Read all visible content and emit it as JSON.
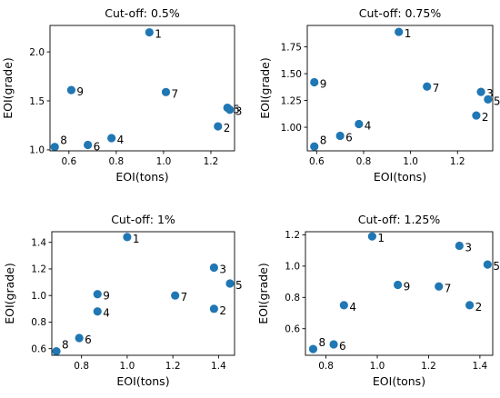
{
  "chart_data": [
    {
      "type": "scatter",
      "title": "Cut-off: 0.5%",
      "xlabel": "EOI(tons)",
      "ylabel": "EOI(grade)",
      "xlim": [
        0.52,
        1.3
      ],
      "ylim": [
        0.99,
        2.27
      ],
      "xticks": [
        0.6,
        0.8,
        1.0,
        1.2
      ],
      "xtick_labels": [
        "0.6",
        "0.8",
        "1.0",
        "1.2"
      ],
      "yticks": [
        1.0,
        1.5,
        2.0
      ],
      "ytick_labels": [
        "1.0",
        "1.5",
        "2.0"
      ],
      "color": "#1f77b4",
      "points": [
        {
          "label": "1",
          "x": 0.94,
          "y": 2.2
        },
        {
          "label": "2",
          "x": 1.23,
          "y": 1.24
        },
        {
          "label": "3",
          "x": 1.28,
          "y": 1.41
        },
        {
          "label": "4",
          "x": 0.78,
          "y": 1.12
        },
        {
          "label": "5",
          "x": 1.27,
          "y": 1.43
        },
        {
          "label": "6",
          "x": 0.68,
          "y": 1.05
        },
        {
          "label": "7",
          "x": 1.01,
          "y": 1.59
        },
        {
          "label": "8",
          "x": 0.54,
          "y": 1.03
        },
        {
          "label": "9",
          "x": 0.61,
          "y": 1.61
        }
      ]
    },
    {
      "type": "scatter",
      "title": "Cut-off: 0.75%",
      "xlabel": "EOI(tons)",
      "ylabel": "EOI(grade)",
      "xlim": [
        0.56,
        1.35
      ],
      "ylim": [
        0.78,
        1.95
      ],
      "xticks": [
        0.6,
        0.8,
        1.0,
        1.2
      ],
      "xtick_labels": [
        "0.6",
        "0.8",
        "1.0",
        "1.2"
      ],
      "yticks": [
        1.0,
        1.25,
        1.5,
        1.75
      ],
      "ytick_labels": [
        "1.00",
        "1.25",
        "1.50",
        "1.75"
      ],
      "color": "#1f77b4",
      "points": [
        {
          "label": "1",
          "x": 0.95,
          "y": 1.89
        },
        {
          "label": "2",
          "x": 1.28,
          "y": 1.11
        },
        {
          "label": "3",
          "x": 1.3,
          "y": 1.33
        },
        {
          "label": "4",
          "x": 0.78,
          "y": 1.03
        },
        {
          "label": "5",
          "x": 1.33,
          "y": 1.26
        },
        {
          "label": "6",
          "x": 0.7,
          "y": 0.92
        },
        {
          "label": "7",
          "x": 1.07,
          "y": 1.38
        },
        {
          "label": "8",
          "x": 0.59,
          "y": 0.82
        },
        {
          "label": "9",
          "x": 0.59,
          "y": 1.42
        }
      ]
    },
    {
      "type": "scatter",
      "title": "Cut-off: 1%",
      "xlabel": "EOI(tons)",
      "ylabel": "EOI(grade)",
      "xlim": [
        0.67,
        1.47
      ],
      "ylim": [
        0.55,
        1.48
      ],
      "xticks": [
        0.8,
        1.0,
        1.2,
        1.4
      ],
      "xtick_labels": [
        "0.8",
        "1.0",
        "1.2",
        "1.4"
      ],
      "yticks": [
        0.6,
        0.8,
        1.0,
        1.2,
        1.4
      ],
      "ytick_labels": [
        "0.6",
        "0.8",
        "1.0",
        "1.2",
        "1.4"
      ],
      "color": "#1f77b4",
      "points": [
        {
          "label": "1",
          "x": 1.0,
          "y": 1.44
        },
        {
          "label": "2",
          "x": 1.38,
          "y": 0.9
        },
        {
          "label": "3",
          "x": 1.38,
          "y": 1.21
        },
        {
          "label": "4",
          "x": 0.87,
          "y": 0.88
        },
        {
          "label": "5",
          "x": 1.45,
          "y": 1.09
        },
        {
          "label": "6",
          "x": 0.79,
          "y": 0.68
        },
        {
          "label": "7",
          "x": 1.21,
          "y": 1.0
        },
        {
          "label": "8",
          "x": 0.69,
          "y": 0.58
        },
        {
          "label": "9",
          "x": 0.87,
          "y": 1.01
        }
      ]
    },
    {
      "type": "scatter",
      "title": "Cut-off: 1.25%",
      "xlabel": "EOI(tons)",
      "ylabel": "EOI(grade)",
      "xlim": [
        0.72,
        1.45
      ],
      "ylim": [
        0.43,
        1.22
      ],
      "xticks": [
        0.8,
        1.0,
        1.2,
        1.4
      ],
      "xtick_labels": [
        "0.8",
        "1.0",
        "1.2",
        "1.4"
      ],
      "yticks": [
        0.6,
        0.8,
        1.0,
        1.2
      ],
      "ytick_labels": [
        "0.6",
        "0.8",
        "1.0",
        "1.2"
      ],
      "color": "#1f77b4",
      "points": [
        {
          "label": "1",
          "x": 0.98,
          "y": 1.19
        },
        {
          "label": "2",
          "x": 1.36,
          "y": 0.75
        },
        {
          "label": "3",
          "x": 1.32,
          "y": 1.13
        },
        {
          "label": "4",
          "x": 0.87,
          "y": 0.75
        },
        {
          "label": "5",
          "x": 1.43,
          "y": 1.01
        },
        {
          "label": "6",
          "x": 0.83,
          "y": 0.5
        },
        {
          "label": "7",
          "x": 1.24,
          "y": 0.87
        },
        {
          "label": "8",
          "x": 0.75,
          "y": 0.47
        },
        {
          "label": "9",
          "x": 1.08,
          "y": 0.88
        }
      ]
    }
  ]
}
